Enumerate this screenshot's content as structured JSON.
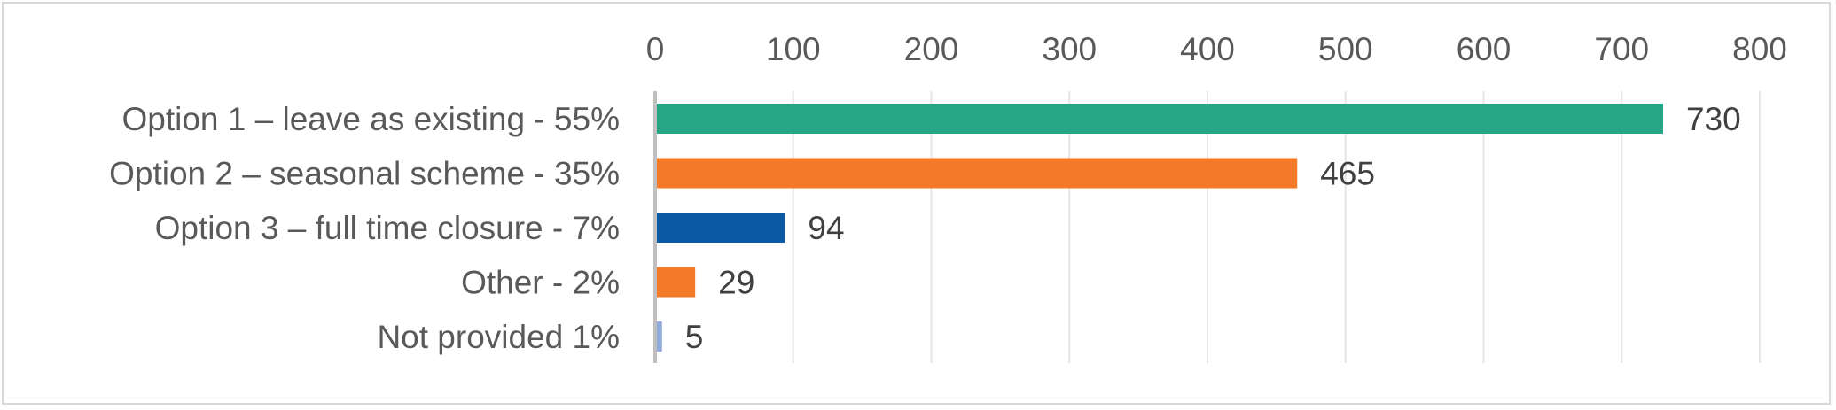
{
  "chart_data": {
    "type": "bar",
    "orientation": "horizontal",
    "categories": [
      "Option 1 – leave as existing  - 55%",
      "Option 2 – seasonal scheme - 35%",
      "Option 3 – full time closure - 7%",
      "Other - 2%",
      "Not provided  1%"
    ],
    "values": [
      730,
      465,
      94,
      29,
      5
    ],
    "colors": [
      "#26a587",
      "#f47a27",
      "#0b5aa3",
      "#f47a27",
      "#8faadc"
    ],
    "title": "",
    "xlabel": "",
    "ylabel": "",
    "xlim": [
      0,
      800
    ],
    "x_ticks": [
      0,
      100,
      200,
      300,
      400,
      500,
      600,
      700,
      800
    ],
    "x_axis_position": "top",
    "grid": true,
    "legend": "none",
    "data_labels": true
  }
}
